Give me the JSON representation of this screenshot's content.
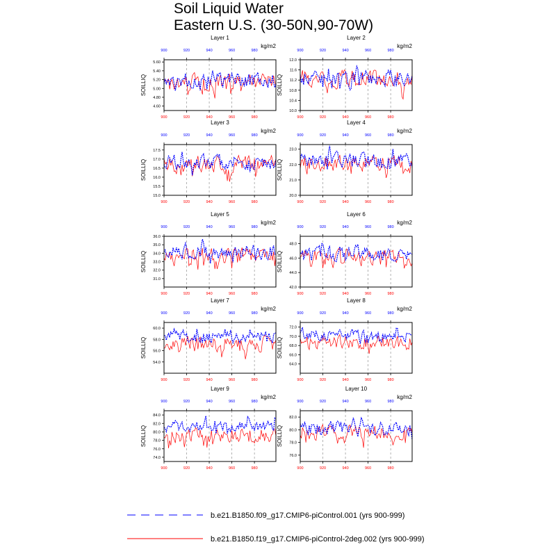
{
  "title": [
    "Soil Liquid Water",
    "Eastern U.S. (30-50N,90-70W)"
  ],
  "colors": {
    "series1": "#0000ff",
    "series2": "#ff0000",
    "grid": "#808080"
  },
  "chart_data": {
    "type": "line",
    "x_range": [
      900,
      999
    ],
    "x_ticks": [
      900,
      920,
      940,
      960,
      980
    ],
    "x_ticks_top_color": "blue",
    "x_ticks_bottom_color": "red",
    "grid": "dashed vertical lines at x ticks",
    "ylabel": "SOILLIQ",
    "units": "kg/m2",
    "legend_position": "bottom",
    "series": [
      {
        "name": "b.e21.B1850.f09_g17.CMIP6-piControl.001 (yrs 900-999)",
        "color": "#0000ff",
        "style": "dashed"
      },
      {
        "name": "b.e21.B1850.f19_g17.CMIP6-piControl-2deg.002 (yrs 900-999)",
        "color": "#ff0000",
        "style": "solid"
      }
    ],
    "panels": [
      {
        "title": "Layer 1",
        "ylim": [
          4.5,
          5.65
        ],
        "yticks": [
          "4.60",
          "4.80",
          "5.00",
          "5.20",
          "5.40",
          "5.60"
        ],
        "blue_mean": 5.18,
        "blue_amp": 0.14,
        "red_mean": 5.15,
        "red_amp": 0.16
      },
      {
        "title": "Layer 2",
        "ylim": [
          10.0,
          12.0
        ],
        "yticks": [
          "10.0",
          "10.4",
          "10.8",
          "11.2",
          "11.6",
          "12.0"
        ],
        "blue_mean": 11.3,
        "blue_amp": 0.26,
        "red_mean": 11.25,
        "red_amp": 0.3
      },
      {
        "title": "Layer 3",
        "ylim": [
          15.0,
          17.8
        ],
        "yticks": [
          "15.0",
          "15.5",
          "16.0",
          "16.5",
          "17.0",
          "17.5"
        ],
        "blue_mean": 16.8,
        "blue_amp": 0.35,
        "red_mean": 16.7,
        "red_amp": 0.4
      },
      {
        "title": "Layer 4",
        "ylim": [
          20.0,
          23.3
        ],
        "yticks": [
          "20.0",
          "21.0",
          "22.0",
          "23.0"
        ],
        "blue_mean": 22.3,
        "blue_amp": 0.4,
        "red_mean": 22.1,
        "red_amp": 0.45
      },
      {
        "title": "Layer 5",
        "ylim": [
          30.0,
          36.0
        ],
        "yticks": [
          "31.0",
          "32.0",
          "33.0",
          "34.0",
          "35.0",
          "36.0"
        ],
        "blue_mean": 34.1,
        "blue_amp": 0.7,
        "red_mean": 33.8,
        "red_amp": 0.8
      },
      {
        "title": "Layer 6",
        "ylim": [
          42.0,
          49.0
        ],
        "yticks": [
          "42.0",
          "44.0",
          "46.0",
          "48.0"
        ],
        "blue_mean": 46.6,
        "blue_amp": 0.9,
        "red_mean": 46.1,
        "red_amp": 1.0
      },
      {
        "title": "Layer 7",
        "ylim": [
          52.0,
          61.0
        ],
        "yticks": [
          "54.0",
          "56.0",
          "58.0",
          "60.0"
        ],
        "blue_mean": 58.4,
        "blue_amp": 0.9,
        "red_mean": 57.2,
        "red_amp": 1.1
      },
      {
        "title": "Layer 8",
        "ylim": [
          62.0,
          73.0
        ],
        "yticks": [
          "64.0",
          "66.0",
          "68.0",
          "70.0",
          "72.0"
        ],
        "blue_mean": 70.2,
        "blue_amp": 1.0,
        "red_mean": 68.6,
        "red_amp": 1.3
      },
      {
        "title": "Layer 9",
        "ylim": [
          73.0,
          85.0
        ],
        "yticks": [
          "74.0",
          "76.0",
          "78.0",
          "80.0",
          "82.0",
          "84.0"
        ],
        "blue_mean": 81.4,
        "blue_amp": 1.2,
        "red_mean": 79.2,
        "red_amp": 1.5
      },
      {
        "title": "Layer 10",
        "ylim": [
          75.0,
          83.0
        ],
        "yticks": [
          "76.0",
          "78.0",
          "80.0",
          "82.0"
        ],
        "blue_mean": 80.3,
        "blue_amp": 0.9,
        "red_mean": 79.6,
        "red_amp": 1.0
      }
    ]
  }
}
